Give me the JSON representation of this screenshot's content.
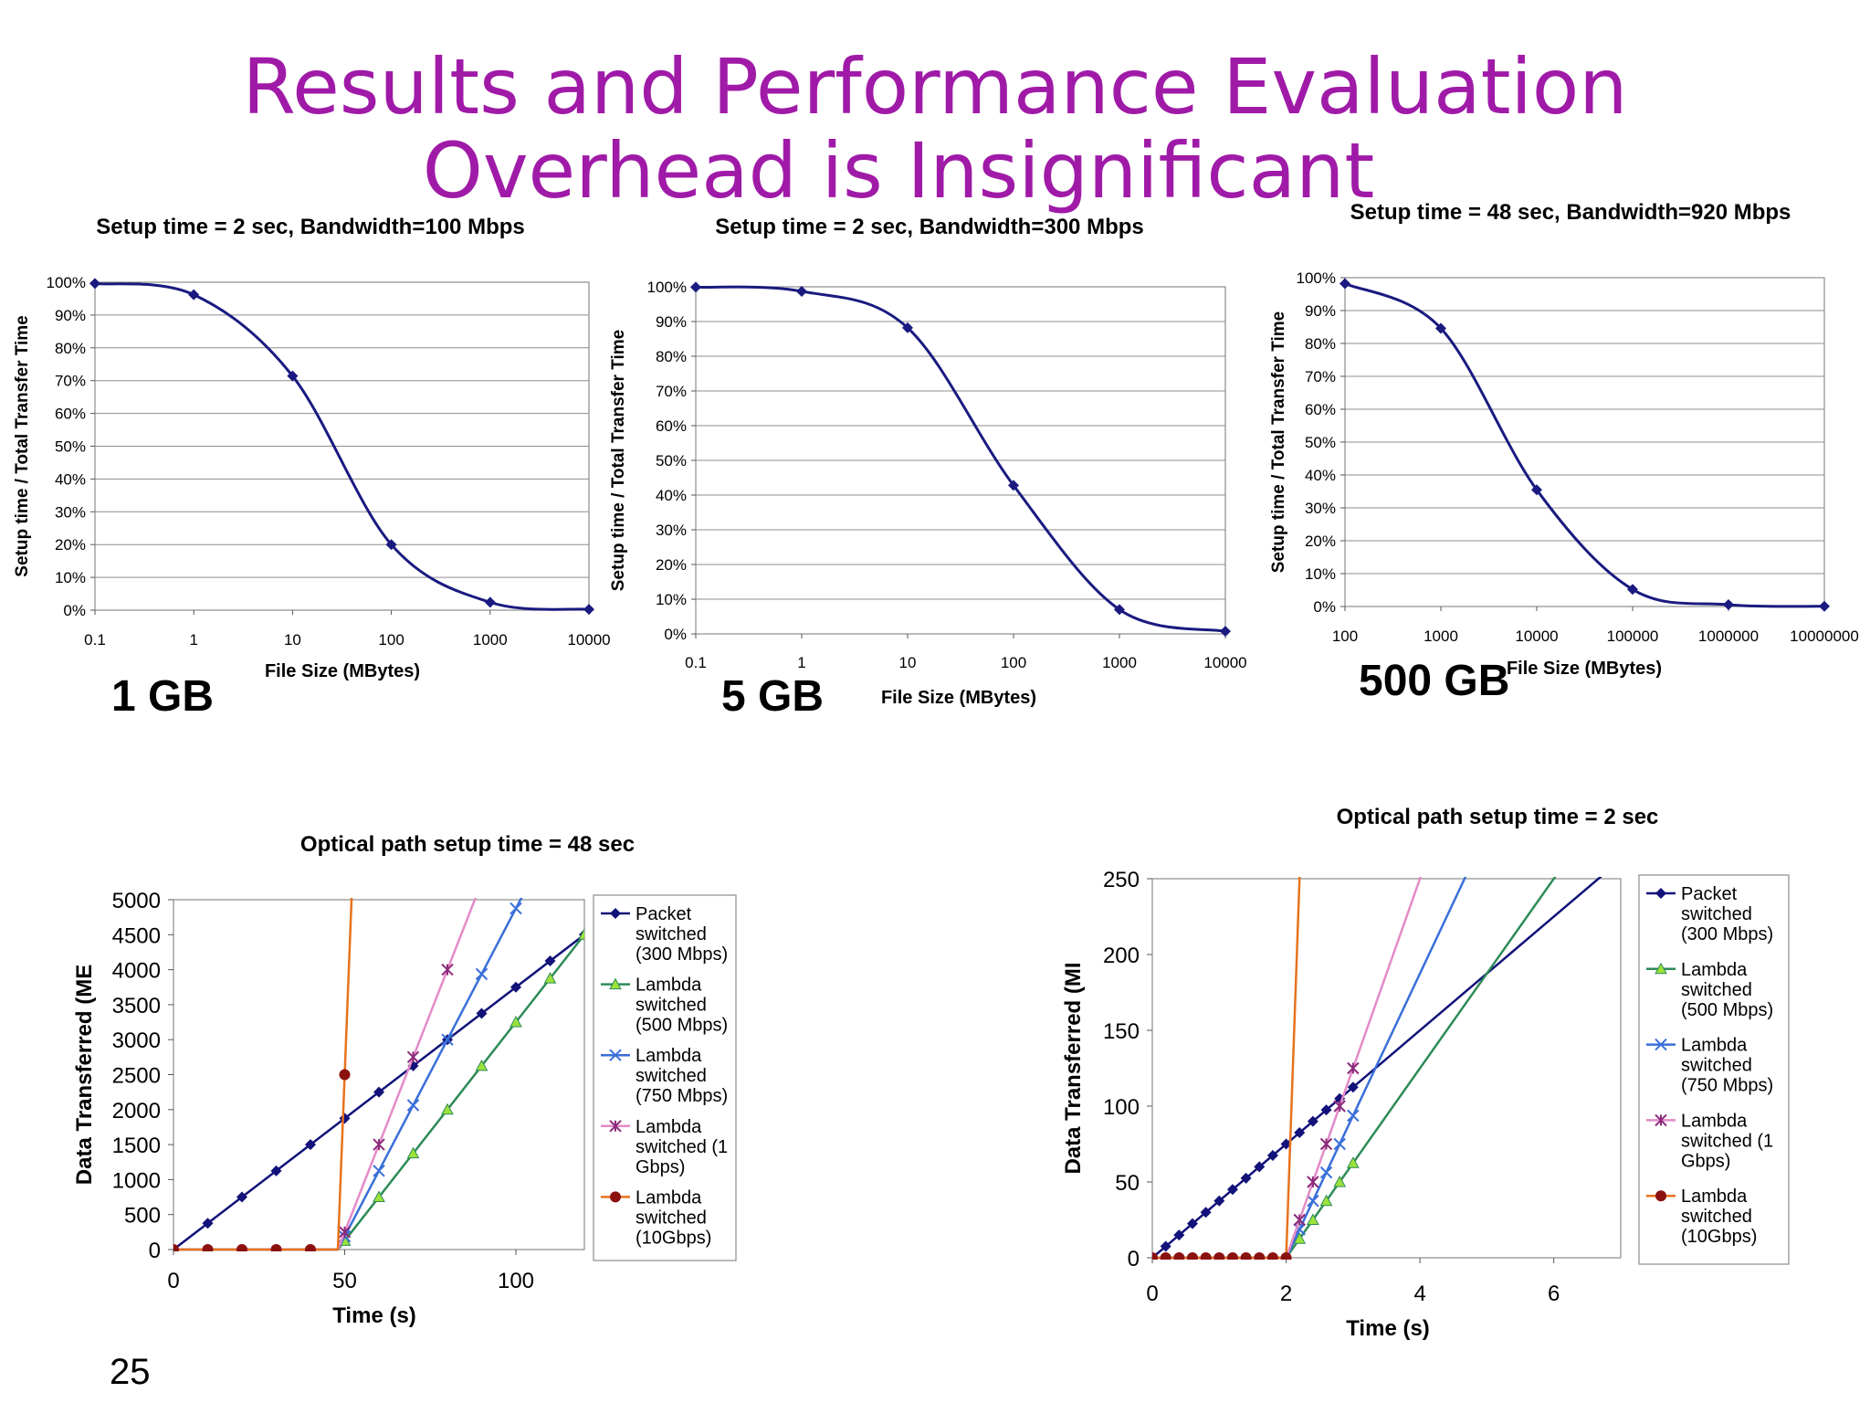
{
  "slide": {
    "title_line1": "Results and Performance Evaluation",
    "title_line2": "Overhead is Insignificant",
    "page_number": "25",
    "size_labels": [
      "1 GB",
      "5 GB",
      "500 GB"
    ]
  },
  "chart_data": [
    {
      "type": "line",
      "title": "Setup time = 2 sec, Bandwidth=100 Mbps",
      "xlabel": "File Size (MBytes)",
      "ylabel": "Setup time / Total Transfer Time",
      "x_scale": "log",
      "x": [
        0.1,
        1,
        10,
        100,
        1000,
        10000
      ],
      "xticks": [
        "0.1",
        "1",
        "10",
        "100",
        "1000",
        "10000"
      ],
      "yticks": [
        "0%",
        "10%",
        "20%",
        "30%",
        "40%",
        "50%",
        "60%",
        "70%",
        "80%",
        "90%",
        "100%"
      ],
      "ylim": [
        0,
        1
      ],
      "grid": true,
      "series": [
        {
          "values": [
            0.996,
            0.962,
            0.714,
            0.2,
            0.024,
            0.0025
          ],
          "color": "#1a1a80"
        }
      ]
    },
    {
      "type": "line",
      "title": "Setup time = 2 sec, Bandwidth=300 Mbps",
      "xlabel": "File Size (MBytes)",
      "ylabel": "Setup time / Total Transfer Time",
      "x_scale": "log",
      "x": [
        0.1,
        1,
        10,
        100,
        1000,
        10000
      ],
      "xticks": [
        "0.1",
        "1",
        "10",
        "100",
        "1000",
        "10000"
      ],
      "yticks": [
        "0%",
        "10%",
        "20%",
        "30%",
        "40%",
        "50%",
        "60%",
        "70%",
        "80%",
        "90%",
        "100%"
      ],
      "ylim": [
        0,
        1
      ],
      "grid": true,
      "series": [
        {
          "values": [
            0.999,
            0.987,
            0.882,
            0.428,
            0.07,
            0.0075
          ],
          "color": "#1a1a80"
        }
      ]
    },
    {
      "type": "line",
      "title": "Setup time = 48 sec, Bandwidth=920 Mbps",
      "xlabel": "File Size (MBytes)",
      "ylabel": "Setup time / Total Transfer Time",
      "x_scale": "log",
      "x": [
        100,
        1000,
        10000,
        100000,
        1000000,
        10000000
      ],
      "xticks": [
        "100",
        "1000",
        "10000",
        "100000",
        "1000000",
        "10000000"
      ],
      "yticks": [
        "0%",
        "10%",
        "20%",
        "30%",
        "40%",
        "50%",
        "60%",
        "70%",
        "80%",
        "90%",
        "100%"
      ],
      "ylim": [
        0,
        1
      ],
      "grid": true,
      "series": [
        {
          "values": [
            0.982,
            0.846,
            0.355,
            0.052,
            0.0055,
            0.0006
          ],
          "color": "#1a1a80"
        }
      ]
    },
    {
      "type": "line",
      "title": "Optical path setup time = 48 sec",
      "xlabel": "Time (s)",
      "ylabel": "Data Transferred (ME",
      "xlim": [
        0,
        120
      ],
      "ylim": [
        0,
        5000
      ],
      "xticks": [
        0,
        50,
        100
      ],
      "yticks": [
        0,
        500,
        1000,
        1500,
        2000,
        2500,
        3000,
        3500,
        4000,
        4500,
        5000
      ],
      "grid": false,
      "series": [
        {
          "name": "Packet switched (300 Mbps)",
          "legend_lines": [
            "Packet",
            "switched",
            "(300 Mbps)"
          ],
          "color": "#12127a",
          "marker": "diamond",
          "rate": 37.5,
          "setup": 0,
          "marker_x": [
            0,
            10,
            20,
            30,
            40,
            50,
            60,
            70,
            80,
            90,
            100,
            110,
            120
          ]
        },
        {
          "name": "Lambda switched (500 Mbps)",
          "legend_lines": [
            "Lambda",
            "switched",
            "(500 Mbps)"
          ],
          "color": "#2e8b57",
          "marker": "triangle",
          "rate": 62.5,
          "setup": 48,
          "marker_x": [
            50,
            60,
            70,
            80,
            90,
            100,
            110,
            120
          ]
        },
        {
          "name": "Lambda switched (750 Mbps)",
          "legend_lines": [
            "Lambda",
            "switched",
            "(750 Mbps)"
          ],
          "color": "#3a6fd8",
          "marker": "x",
          "rate": 93.75,
          "setup": 48,
          "marker_x": [
            50,
            60,
            70,
            80,
            90,
            100
          ]
        },
        {
          "name": "Lambda switched (1 Gbps)",
          "legend_lines": [
            "Lambda",
            "switched (1",
            "Gbps)"
          ],
          "color": "#e48bc8",
          "marker": "star",
          "rate": 125,
          "setup": 48,
          "marker_x": [
            50,
            60,
            70,
            80
          ]
        },
        {
          "name": "Lambda switched (10Gbps)",
          "legend_lines": [
            "Lambda",
            "switched",
            "(10Gbps)"
          ],
          "color": "#e8721c",
          "marker": "circle",
          "rate": 1250,
          "setup": 48,
          "marker_x": [
            0,
            10,
            20,
            30,
            40,
            50
          ]
        }
      ]
    },
    {
      "type": "line",
      "title": "Optical path setup time = 2 sec",
      "xlabel": "Time (s)",
      "ylabel": "Data Transferred (MI",
      "xlim": [
        0,
        7
      ],
      "ylim": [
        0,
        250
      ],
      "xticks": [
        0,
        2,
        4,
        6
      ],
      "yticks": [
        0,
        50,
        100,
        150,
        200,
        250
      ],
      "grid": false,
      "series": [
        {
          "name": "Packet switched (300 Mbps)",
          "legend_lines": [
            "Packet",
            "switched",
            "(300 Mbps)"
          ],
          "color": "#12127a",
          "marker": "diamond",
          "rate": 37.5,
          "setup": 0,
          "marker_x": [
            0,
            0.2,
            0.4,
            0.6,
            0.8,
            1.0,
            1.2,
            1.4,
            1.6,
            1.8,
            2.0,
            2.2,
            2.4,
            2.6,
            2.8,
            3.0
          ]
        },
        {
          "name": "Lambda switched (500 Mbps)",
          "legend_lines": [
            "Lambda",
            "switched",
            "(500 Mbps)"
          ],
          "color": "#2e8b57",
          "marker": "triangle",
          "rate": 62.5,
          "setup": 2,
          "marker_x": [
            2.2,
            2.4,
            2.6,
            2.8,
            3.0
          ]
        },
        {
          "name": "Lambda switched (750 Mbps)",
          "legend_lines": [
            "Lambda",
            "switched",
            "(750 Mbps)"
          ],
          "color": "#3a6fd8",
          "marker": "x",
          "rate": 93.75,
          "setup": 2,
          "marker_x": [
            2.2,
            2.4,
            2.6,
            2.8,
            3.0
          ]
        },
        {
          "name": "Lambda switched (1 Gbps)",
          "legend_lines": [
            "Lambda",
            "switched (1",
            "Gbps)"
          ],
          "color": "#e48bc8",
          "marker": "star",
          "rate": 125,
          "setup": 2,
          "marker_x": [
            2.2,
            2.4,
            2.6,
            2.8,
            3.0
          ]
        },
        {
          "name": "Lambda switched (10Gbps)",
          "legend_lines": [
            "Lambda",
            "switched",
            "(10Gbps)"
          ],
          "color": "#e8721c",
          "marker": "circle",
          "rate": 1250,
          "setup": 2,
          "marker_x": [
            0,
            0.2,
            0.4,
            0.6,
            0.8,
            1.0,
            1.2,
            1.4,
            1.6,
            1.8,
            2.0,
            2.2
          ]
        }
      ]
    }
  ]
}
